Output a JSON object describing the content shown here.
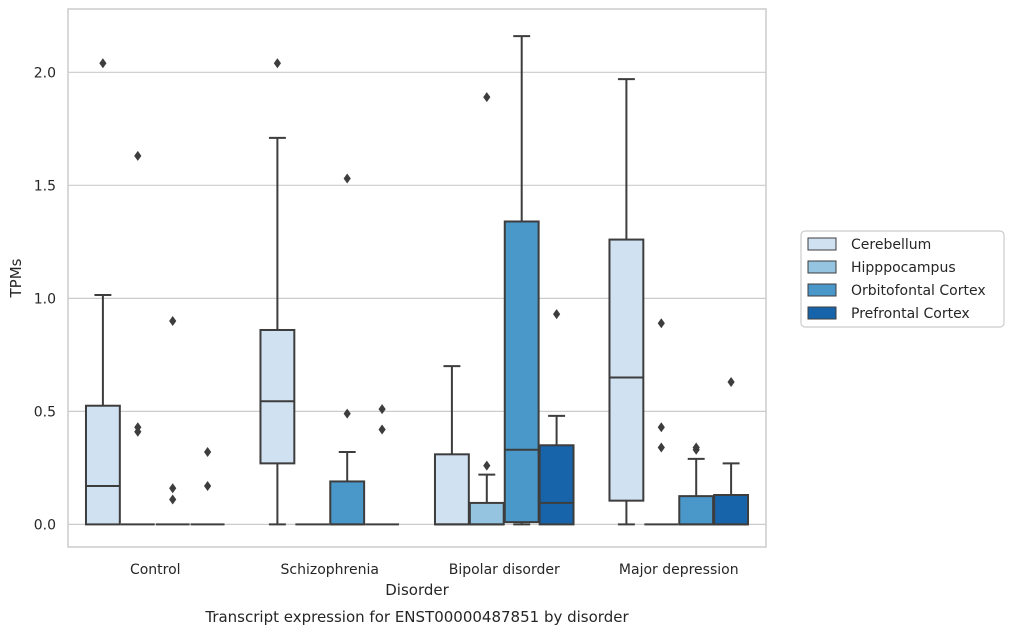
{
  "chart_data": {
    "type": "box",
    "caption": "Transcript expression for ENST00000487851 by disorder",
    "xlabel": "Disorder",
    "ylabel": "TPMs",
    "ylim": [
      -0.1,
      2.28
    ],
    "yticks": [
      "0.0",
      "0.5",
      "1.0",
      "1.5",
      "2.0"
    ],
    "grid": "horizontal",
    "legend_position": "right",
    "categories": [
      "Control",
      "Schizophrenia",
      "Bipolar disorder",
      "Major depression"
    ],
    "colors": {
      "Cerebellum": "#d0e1f2",
      "Hipppocampus": "#94c4df",
      "Orbitofontal Cortex": "#4a98c9",
      "Prefrontal Cortex": "#1764ab"
    },
    "series": [
      {
        "name": "Cerebellum",
        "boxes": [
          {
            "min": 0.0,
            "q1": 0.0,
            "median": 0.17,
            "q3": 0.525,
            "max": 1.015,
            "fliers": [
              2.04
            ]
          },
          {
            "min": 0.0,
            "q1": 0.27,
            "median": 0.545,
            "q3": 0.86,
            "max": 1.71,
            "fliers": [
              2.04
            ]
          },
          {
            "min": 0.0,
            "q1": 0.0,
            "median": 0.0,
            "q3": 0.31,
            "max": 0.7,
            "fliers": []
          },
          {
            "min": 0.0,
            "q1": 0.105,
            "median": 0.65,
            "q3": 1.26,
            "max": 1.97,
            "fliers": []
          }
        ]
      },
      {
        "name": "Hipppocampus",
        "boxes": [
          {
            "min": 0.0,
            "q1": 0.0,
            "median": 0.0,
            "q3": 0.0,
            "max": 0.0,
            "fliers": [
              1.63,
              0.43,
              0.41
            ]
          },
          {
            "min": 0.0,
            "q1": 0.0,
            "median": 0.0,
            "q3": 0.0,
            "max": 0.0,
            "fliers": []
          },
          {
            "min": 0.0,
            "q1": 0.0,
            "median": 0.0,
            "q3": 0.095,
            "max": 0.22,
            "fliers": [
              1.89,
              0.26
            ]
          },
          {
            "min": 0.0,
            "q1": 0.0,
            "median": 0.0,
            "q3": 0.0,
            "max": 0.0,
            "fliers": [
              0.89,
              0.43,
              0.34
            ]
          }
        ]
      },
      {
        "name": "Orbitofontal Cortex",
        "boxes": [
          {
            "min": 0.0,
            "q1": 0.0,
            "median": 0.0,
            "q3": 0.0,
            "max": 0.0,
            "fliers": [
              0.9,
              0.16,
              0.11
            ]
          },
          {
            "min": 0.0,
            "q1": 0.0,
            "median": 0.0,
            "q3": 0.19,
            "max": 0.32,
            "fliers": [
              1.53,
              0.49
            ]
          },
          {
            "min": 0.0,
            "q1": 0.01,
            "median": 0.33,
            "q3": 1.34,
            "max": 2.16,
            "fliers": []
          },
          {
            "min": 0.0,
            "q1": 0.0,
            "median": 0.0,
            "q3": 0.125,
            "max": 0.29,
            "fliers": [
              0.34,
              0.33
            ]
          }
        ]
      },
      {
        "name": "Prefrontal Cortex",
        "boxes": [
          {
            "min": 0.0,
            "q1": 0.0,
            "median": 0.0,
            "q3": 0.0,
            "max": 0.0,
            "fliers": [
              0.32,
              0.17
            ]
          },
          {
            "min": 0.0,
            "q1": 0.0,
            "median": 0.0,
            "q3": 0.0,
            "max": 0.0,
            "fliers": [
              0.51,
              0.42
            ]
          },
          {
            "min": 0.0,
            "q1": 0.0,
            "median": 0.095,
            "q3": 0.35,
            "max": 0.48,
            "fliers": [
              0.93
            ]
          },
          {
            "min": 0.0,
            "q1": 0.0,
            "median": 0.0,
            "q3": 0.13,
            "max": 0.27,
            "fliers": [
              0.63
            ]
          }
        ]
      }
    ]
  }
}
